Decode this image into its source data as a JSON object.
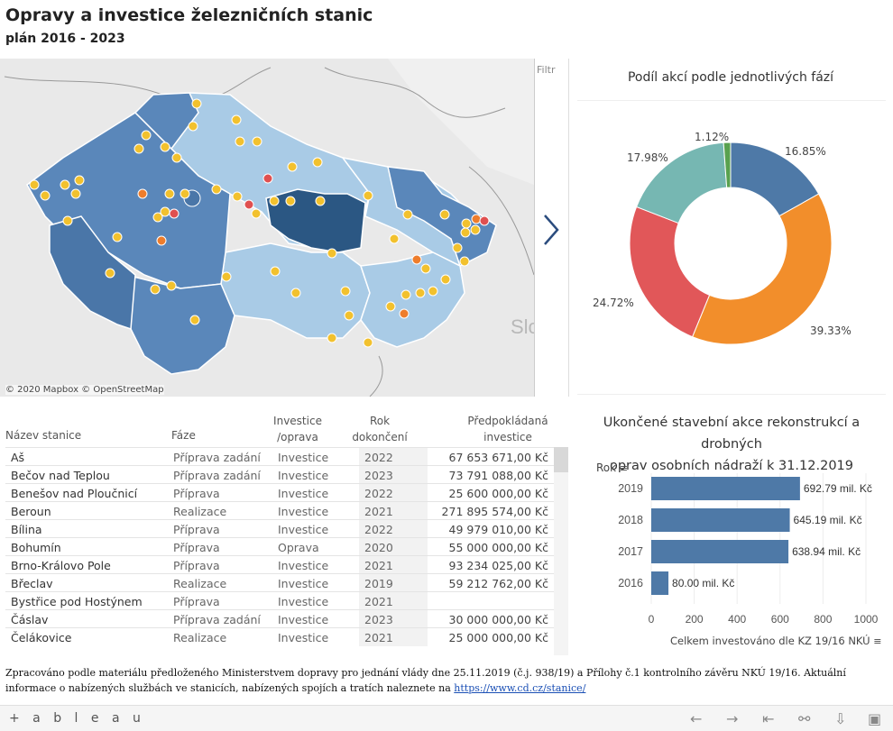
{
  "header": {
    "title": "Opravy a investice železničních stanic",
    "subtitle": "plán 2016 - 2023"
  },
  "map": {
    "attribution": "© 2020 Mapbox © OpenStreetMap",
    "filter_label": "Filtr",
    "partial_label": "Slo",
    "colors": {
      "region_dark": "#2b5783",
      "region_mid": "#5a87ba",
      "region_light": "#a9cbe6",
      "dot_yellow": "#f2c12e",
      "dot_orange": "#ee7d2c",
      "dot_red": "#e05050"
    }
  },
  "pie": {
    "title": "Podíl akcí podle jednotlivých fází",
    "slices": [
      {
        "label": "16.85%",
        "value": 16.85,
        "color": "#4e79a7"
      },
      {
        "label": "39.33%",
        "value": 39.33,
        "color": "#f28e2b"
      },
      {
        "label": "24.72%",
        "value": 24.72,
        "color": "#e15759"
      },
      {
        "label": "17.98%",
        "value": 17.98,
        "color": "#76b7b2"
      },
      {
        "label": "1.12%",
        "value": 1.12,
        "color": "#59a14f"
      }
    ]
  },
  "table": {
    "headers": {
      "name": "Název stanice",
      "phase": "Fáze",
      "type": "Investice /oprava",
      "year": "Rok dokončení",
      "cost": "Předpokládaná investice"
    },
    "rows": [
      {
        "name": "Aš",
        "phase": "Příprava zadání",
        "type": "Investice",
        "year": "2022",
        "cost": "67 653 671,00 Kč"
      },
      {
        "name": "Bečov nad Teplou",
        "phase": "Příprava zadání",
        "type": "Investice",
        "year": "2023",
        "cost": "73 791 088,00 Kč"
      },
      {
        "name": "Benešov nad Ploučnicí",
        "phase": "Příprava",
        "type": "Investice",
        "year": "2022",
        "cost": "25 600 000,00 Kč"
      },
      {
        "name": "Beroun",
        "phase": "Realizace",
        "type": "Investice",
        "year": "2021",
        "cost": "271 895 574,00 Kč"
      },
      {
        "name": "Bílina",
        "phase": "Příprava",
        "type": "Investice",
        "year": "2022",
        "cost": "49 979 010,00 Kč"
      },
      {
        "name": "Bohumín",
        "phase": "Příprava",
        "type": "Oprava",
        "year": "2020",
        "cost": "55 000 000,00 Kč"
      },
      {
        "name": "Brno-Královo Pole",
        "phase": "Příprava",
        "type": "Investice",
        "year": "2021",
        "cost": "93 234 025,00 Kč"
      },
      {
        "name": "Břeclav",
        "phase": "Realizace",
        "type": "Investice",
        "year": "2019",
        "cost": "59 212 762,00 Kč"
      },
      {
        "name": "Bystřice pod Hostýnem",
        "phase": "Příprava",
        "type": "Investice",
        "year": "2021",
        "cost": ""
      },
      {
        "name": "Čáslav",
        "phase": "Příprava zadání",
        "type": "Investice",
        "year": "2023",
        "cost": "30 000 000,00 Kč"
      },
      {
        "name": "Čelákovice",
        "phase": "Realizace",
        "type": "Investice",
        "year": "2021",
        "cost": "25 000 000,00 Kč"
      }
    ]
  },
  "bar_chart": {
    "title_line1": "Ukončené stavební akce rekonstrukcí a drobných",
    "title_line2": "oprav osobních nádraží k 31.12.2019",
    "y_header": "Rok",
    "x_label": "Celkem investováno dle KZ 19/16 NKÚ",
    "color": "#4e79a7"
  },
  "chart_data": {
    "type": "bar",
    "orientation": "horizontal",
    "categories": [
      "2019",
      "2018",
      "2017",
      "2016"
    ],
    "values": [
      692.79,
      645.19,
      638.94,
      80.0
    ],
    "labels": [
      "692.79 mil. Kč",
      "645.19 mil. Kč",
      "638.94 mil. Kč",
      "80.00 mil. Kč"
    ],
    "xlim": [
      0,
      1000
    ],
    "xticks": [
      "0",
      "200",
      "400",
      "600",
      "800",
      "1000"
    ]
  },
  "footer": {
    "note": "Zpracováno podle materiálu předloženého Ministerstvem dopravy pro jednání vlády dne 25.11.2019 (č.j. 938/19) a Přílohy č.1 kontrolního závěru NKÚ 19/16. Aktuální informace o nabízených službách ve stanicích, nabízených spojích a tratích  naleznete na ",
    "link": "https://www.cd.cz/stanice/"
  },
  "toolbar": {
    "logo": "+ a b l e a u",
    "icons": [
      "undo-icon",
      "redo-icon",
      "revert-icon",
      "share-icon",
      "download-icon",
      "fullscreen-icon"
    ]
  }
}
